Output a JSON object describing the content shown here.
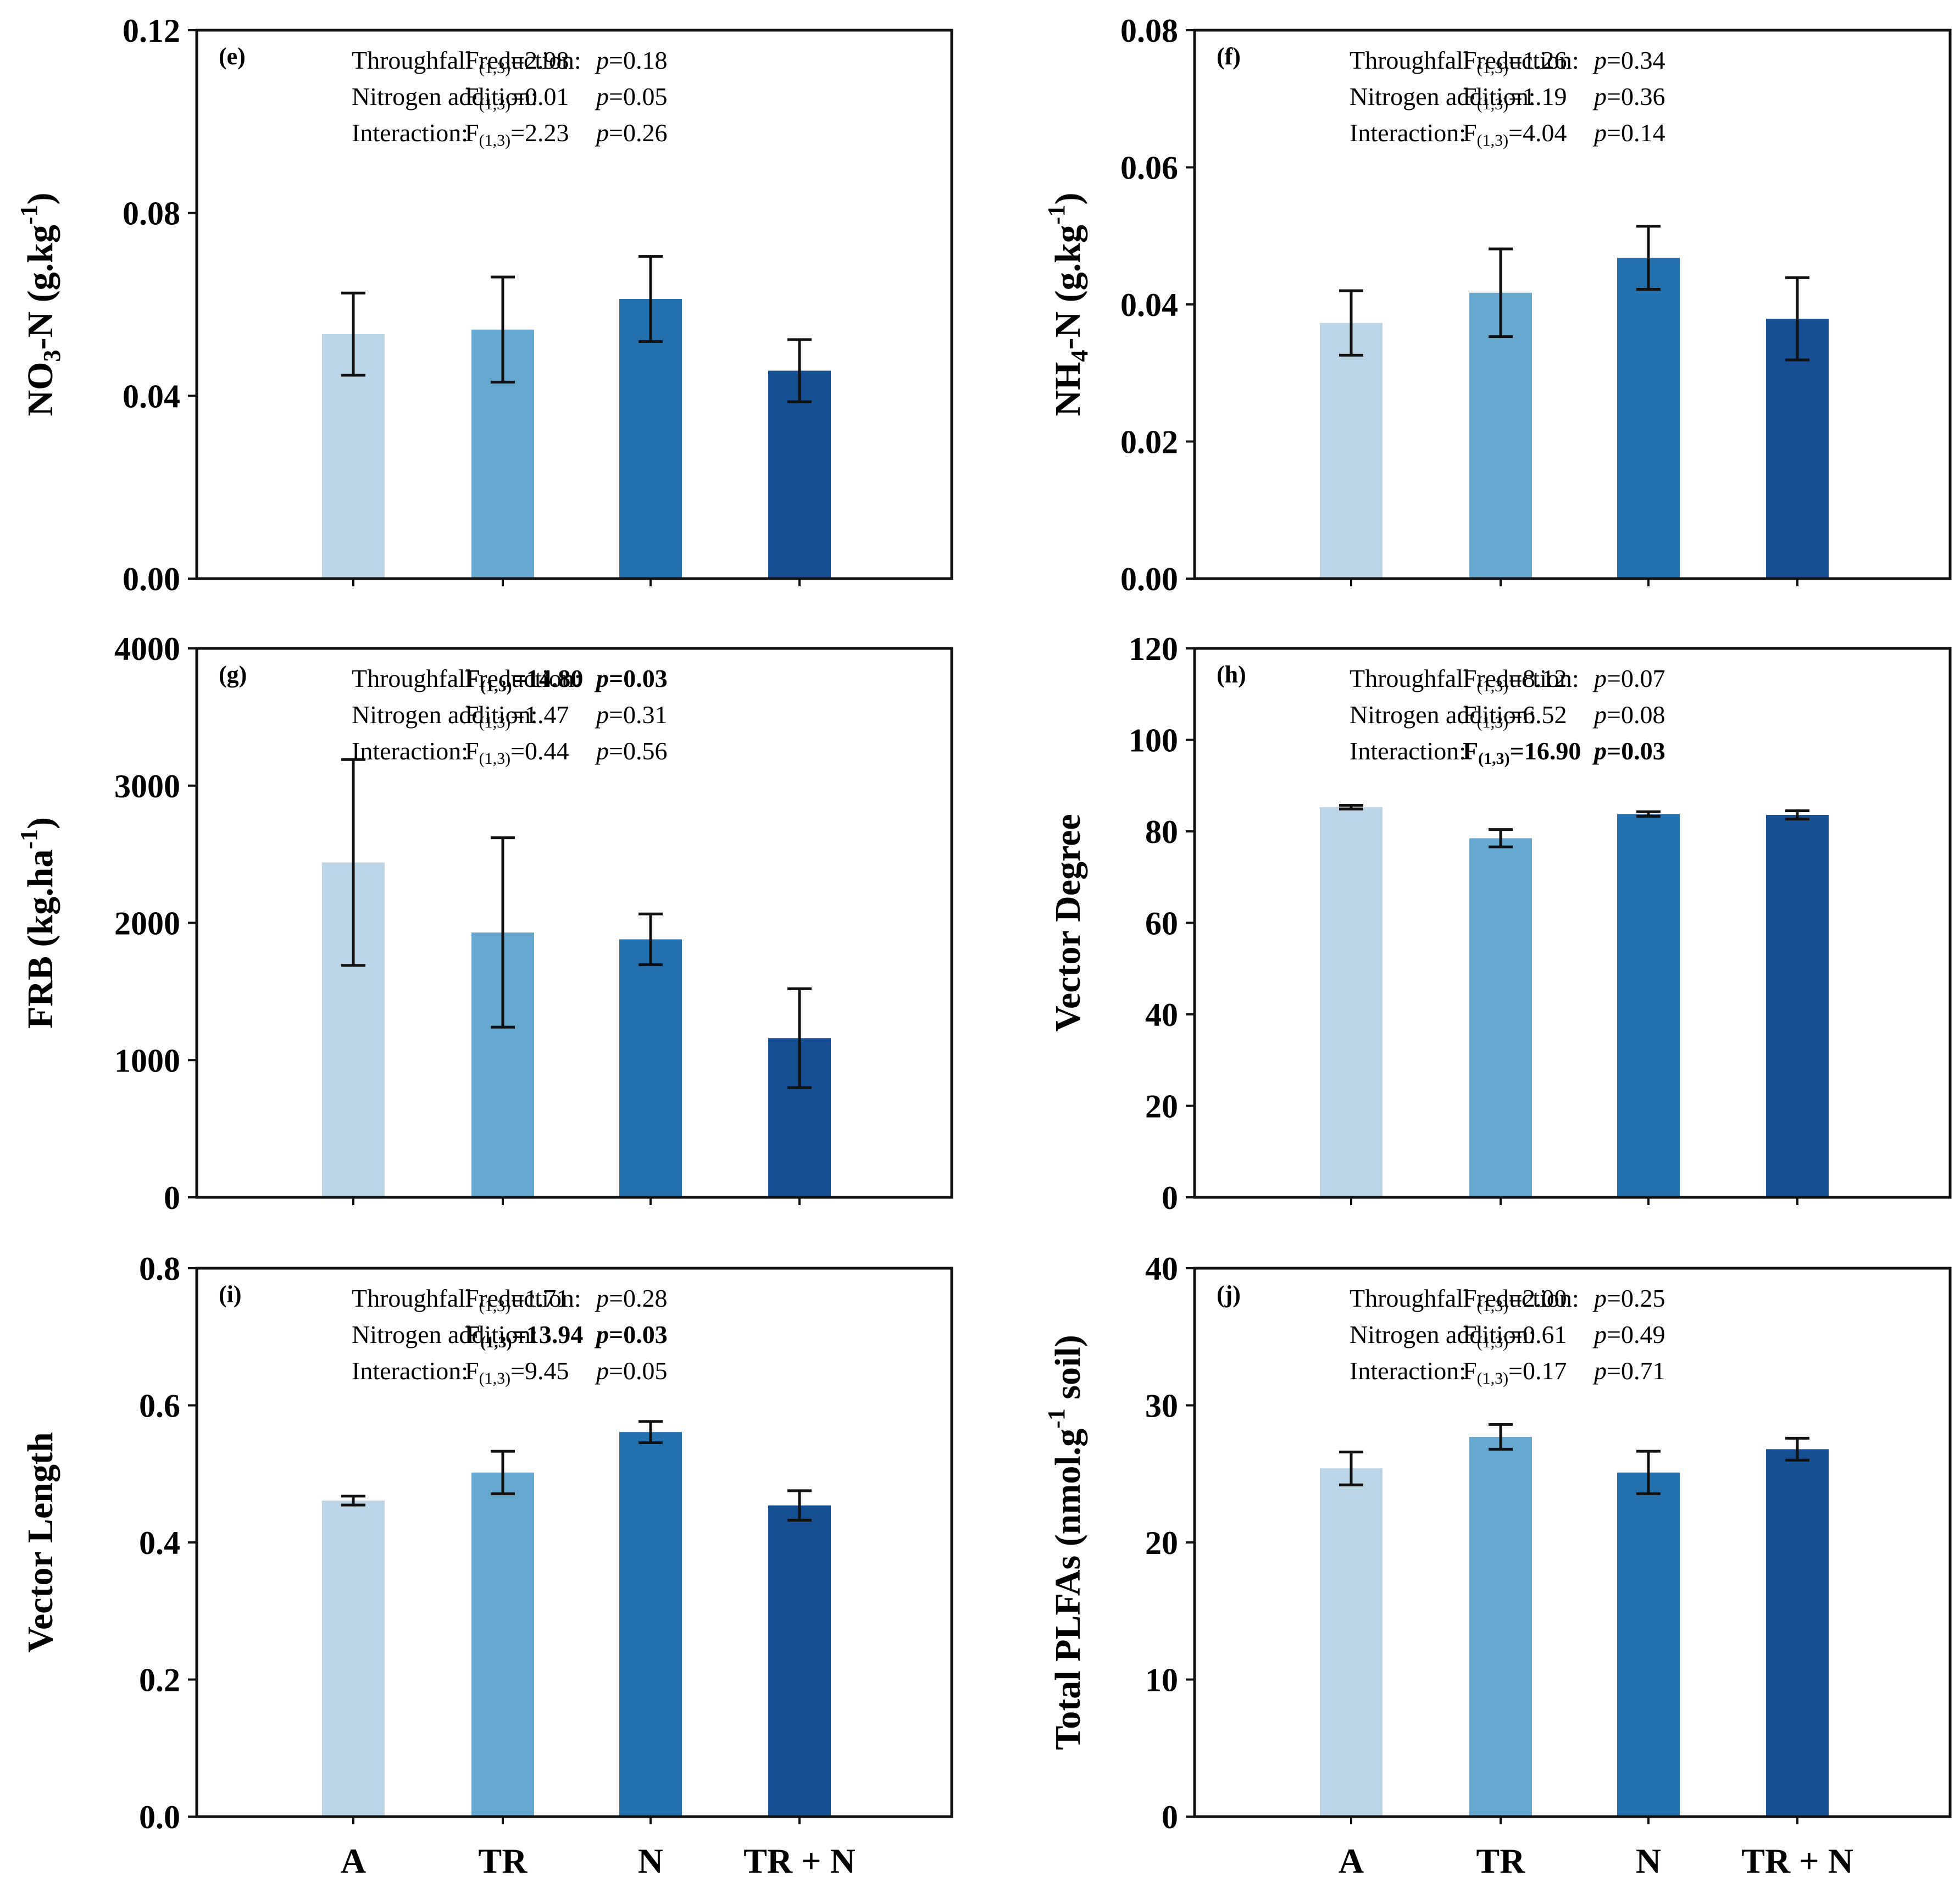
{
  "categories": [
    "A",
    "TR",
    "N",
    "TR + N"
  ],
  "colors": [
    "#bcd5e6",
    "#66a7cf",
    "#2471b0",
    "#174f93"
  ],
  "chart_data": [
    {
      "type": "bar",
      "panel": "(e)",
      "ylabel": "NO3-N (g.kg-1)",
      "ylabel_parts": {
        "pre": "NO",
        "sub": "3",
        "mid": "-N (g.kg",
        "sup": "-1",
        "post": ")"
      },
      "ylim": [
        0,
        0.12
      ],
      "yticks": [
        "0.00",
        "0.04",
        "0.08",
        "0.12"
      ],
      "categories": [
        "A",
        "TR",
        "N",
        "TR + N"
      ],
      "values": [
        0.0535,
        0.0545,
        0.0612,
        0.0455
      ],
      "errors": [
        0.009,
        0.0115,
        0.0093,
        0.0068
      ],
      "stats": [
        {
          "label": "Throughfall reduction:",
          "F": "2.98",
          "p": "0.18",
          "bold": false
        },
        {
          "label": "Nitrogen addition:",
          "F": "0.01",
          "p": "0.05",
          "bold": false
        },
        {
          "label": "Interaction:",
          "F": "2.23",
          "p": "0.26",
          "bold": false
        }
      ]
    },
    {
      "type": "bar",
      "panel": "(f)",
      "ylabel": "NH4-N (g.kg-1)",
      "ylabel_parts": {
        "pre": "NH",
        "sub": "4",
        "mid": "-N (g.kg",
        "sup": "-1",
        "post": ")"
      },
      "ylim": [
        0,
        0.08
      ],
      "yticks": [
        "0.00",
        "0.02",
        "0.04",
        "0.06",
        "0.08"
      ],
      "categories": [
        "A",
        "TR",
        "N",
        "TR + N"
      ],
      "values": [
        0.0373,
        0.0417,
        0.0468,
        0.0379
      ],
      "errors": [
        0.0047,
        0.0064,
        0.0046,
        0.006
      ],
      "stats": [
        {
          "label": "Throughfall reduction:",
          "F": "1.26",
          "p": "0.34",
          "bold": false
        },
        {
          "label": "Nitrogen addition:",
          "F": "1.19",
          "p": "0.36",
          "bold": false
        },
        {
          "label": "Interaction:",
          "F": "4.04",
          "p": "0.14",
          "bold": false
        }
      ]
    },
    {
      "type": "bar",
      "panel": "(g)",
      "ylabel": "FRB (kg.ha-1)",
      "ylabel_parts": {
        "pre": "FRB (kg.ha",
        "sub": "",
        "mid": "",
        "sup": "-1",
        "post": ")"
      },
      "ylim": [
        0,
        4000
      ],
      "yticks": [
        "0",
        "1000",
        "2000",
        "3000",
        "4000"
      ],
      "categories": [
        "A",
        "TR",
        "N",
        "TR + N"
      ],
      "values": [
        2440,
        1930,
        1880,
        1160
      ],
      "errors": [
        750,
        690,
        185,
        360
      ],
      "stats": [
        {
          "label": "Throughfall reduction:",
          "F": "14.80",
          "p": "0.03",
          "bold": true
        },
        {
          "label": "Nitrogen addition:",
          "F": "1.47",
          "p": "0.31",
          "bold": false
        },
        {
          "label": "Interaction:",
          "F": "0.44",
          "p": "0.56",
          "bold": false
        }
      ]
    },
    {
      "type": "bar",
      "panel": "(h)",
      "ylabel": "Vector Degree",
      "ylabel_parts": {
        "pre": "Vector Degree",
        "sub": "",
        "mid": "",
        "sup": "",
        "post": ""
      },
      "ylim": [
        0,
        120
      ],
      "yticks": [
        "0",
        "20",
        "40",
        "60",
        "80",
        "100",
        "120"
      ],
      "categories": [
        "A",
        "TR",
        "N",
        "TR + N"
      ],
      "values": [
        85.3,
        78.5,
        83.8,
        83.6
      ],
      "errors": [
        0.4,
        1.9,
        0.5,
        0.9
      ],
      "stats": [
        {
          "label": "Throughfall reduction:",
          "F": "8.12",
          "p": "0.07",
          "bold": false
        },
        {
          "label": "Nitrogen addition:",
          "F": "6.52",
          "p": "0.08",
          "bold": false
        },
        {
          "label": "Interaction:",
          "F": "16.90",
          "p": "0.03",
          "bold": true
        }
      ]
    },
    {
      "type": "bar",
      "panel": "(i)",
      "ylabel": "Vector Length",
      "ylabel_parts": {
        "pre": "Vector Length",
        "sub": "",
        "mid": "",
        "sup": "",
        "post": ""
      },
      "ylim": [
        0,
        0.8
      ],
      "yticks": [
        "0.0",
        "0.2",
        "0.4",
        "0.6",
        "0.8"
      ],
      "categories": [
        "A",
        "TR",
        "N",
        "TR + N"
      ],
      "values": [
        0.461,
        0.502,
        0.561,
        0.454
      ],
      "errors": [
        0.0065,
        0.031,
        0.0155,
        0.0215
      ],
      "stats": [
        {
          "label": "Throughfall reduction:",
          "F": "1.71",
          "p": "0.28",
          "bold": false
        },
        {
          "label": "Nitrogen addition:",
          "F": "13.94",
          "p": "0.03",
          "bold": true
        },
        {
          "label": "Interaction:",
          "F": "9.45",
          "p": "0.05",
          "bold": false
        }
      ]
    },
    {
      "type": "bar",
      "panel": "(j)",
      "ylabel": "Total PLFAs (nmol.g-1 soil)",
      "ylabel_parts": {
        "pre": "Total PLFAs (nmol.g",
        "sub": "",
        "mid": "",
        "sup": "-1",
        "post": " soil)"
      },
      "ylim": [
        0,
        40
      ],
      "yticks": [
        "0",
        "10",
        "20",
        "30",
        "40"
      ],
      "categories": [
        "A",
        "TR",
        "N",
        "TR + N"
      ],
      "values": [
        25.4,
        27.7,
        25.1,
        26.8
      ],
      "errors": [
        1.2,
        0.9,
        1.55,
        0.8
      ],
      "stats": [
        {
          "label": "Throughfall reduction:",
          "F": "2.00",
          "p": "0.25",
          "bold": false
        },
        {
          "label": "Nitrogen addition:",
          "F": "0.61",
          "p": "0.49",
          "bold": false
        },
        {
          "label": "Interaction:",
          "F": "0.17",
          "p": "0.71",
          "bold": false
        }
      ]
    }
  ],
  "stat_text": {
    "F_letter": "F",
    "F_df": "(1,3)",
    "equals": "=",
    "p_letter": "p"
  }
}
